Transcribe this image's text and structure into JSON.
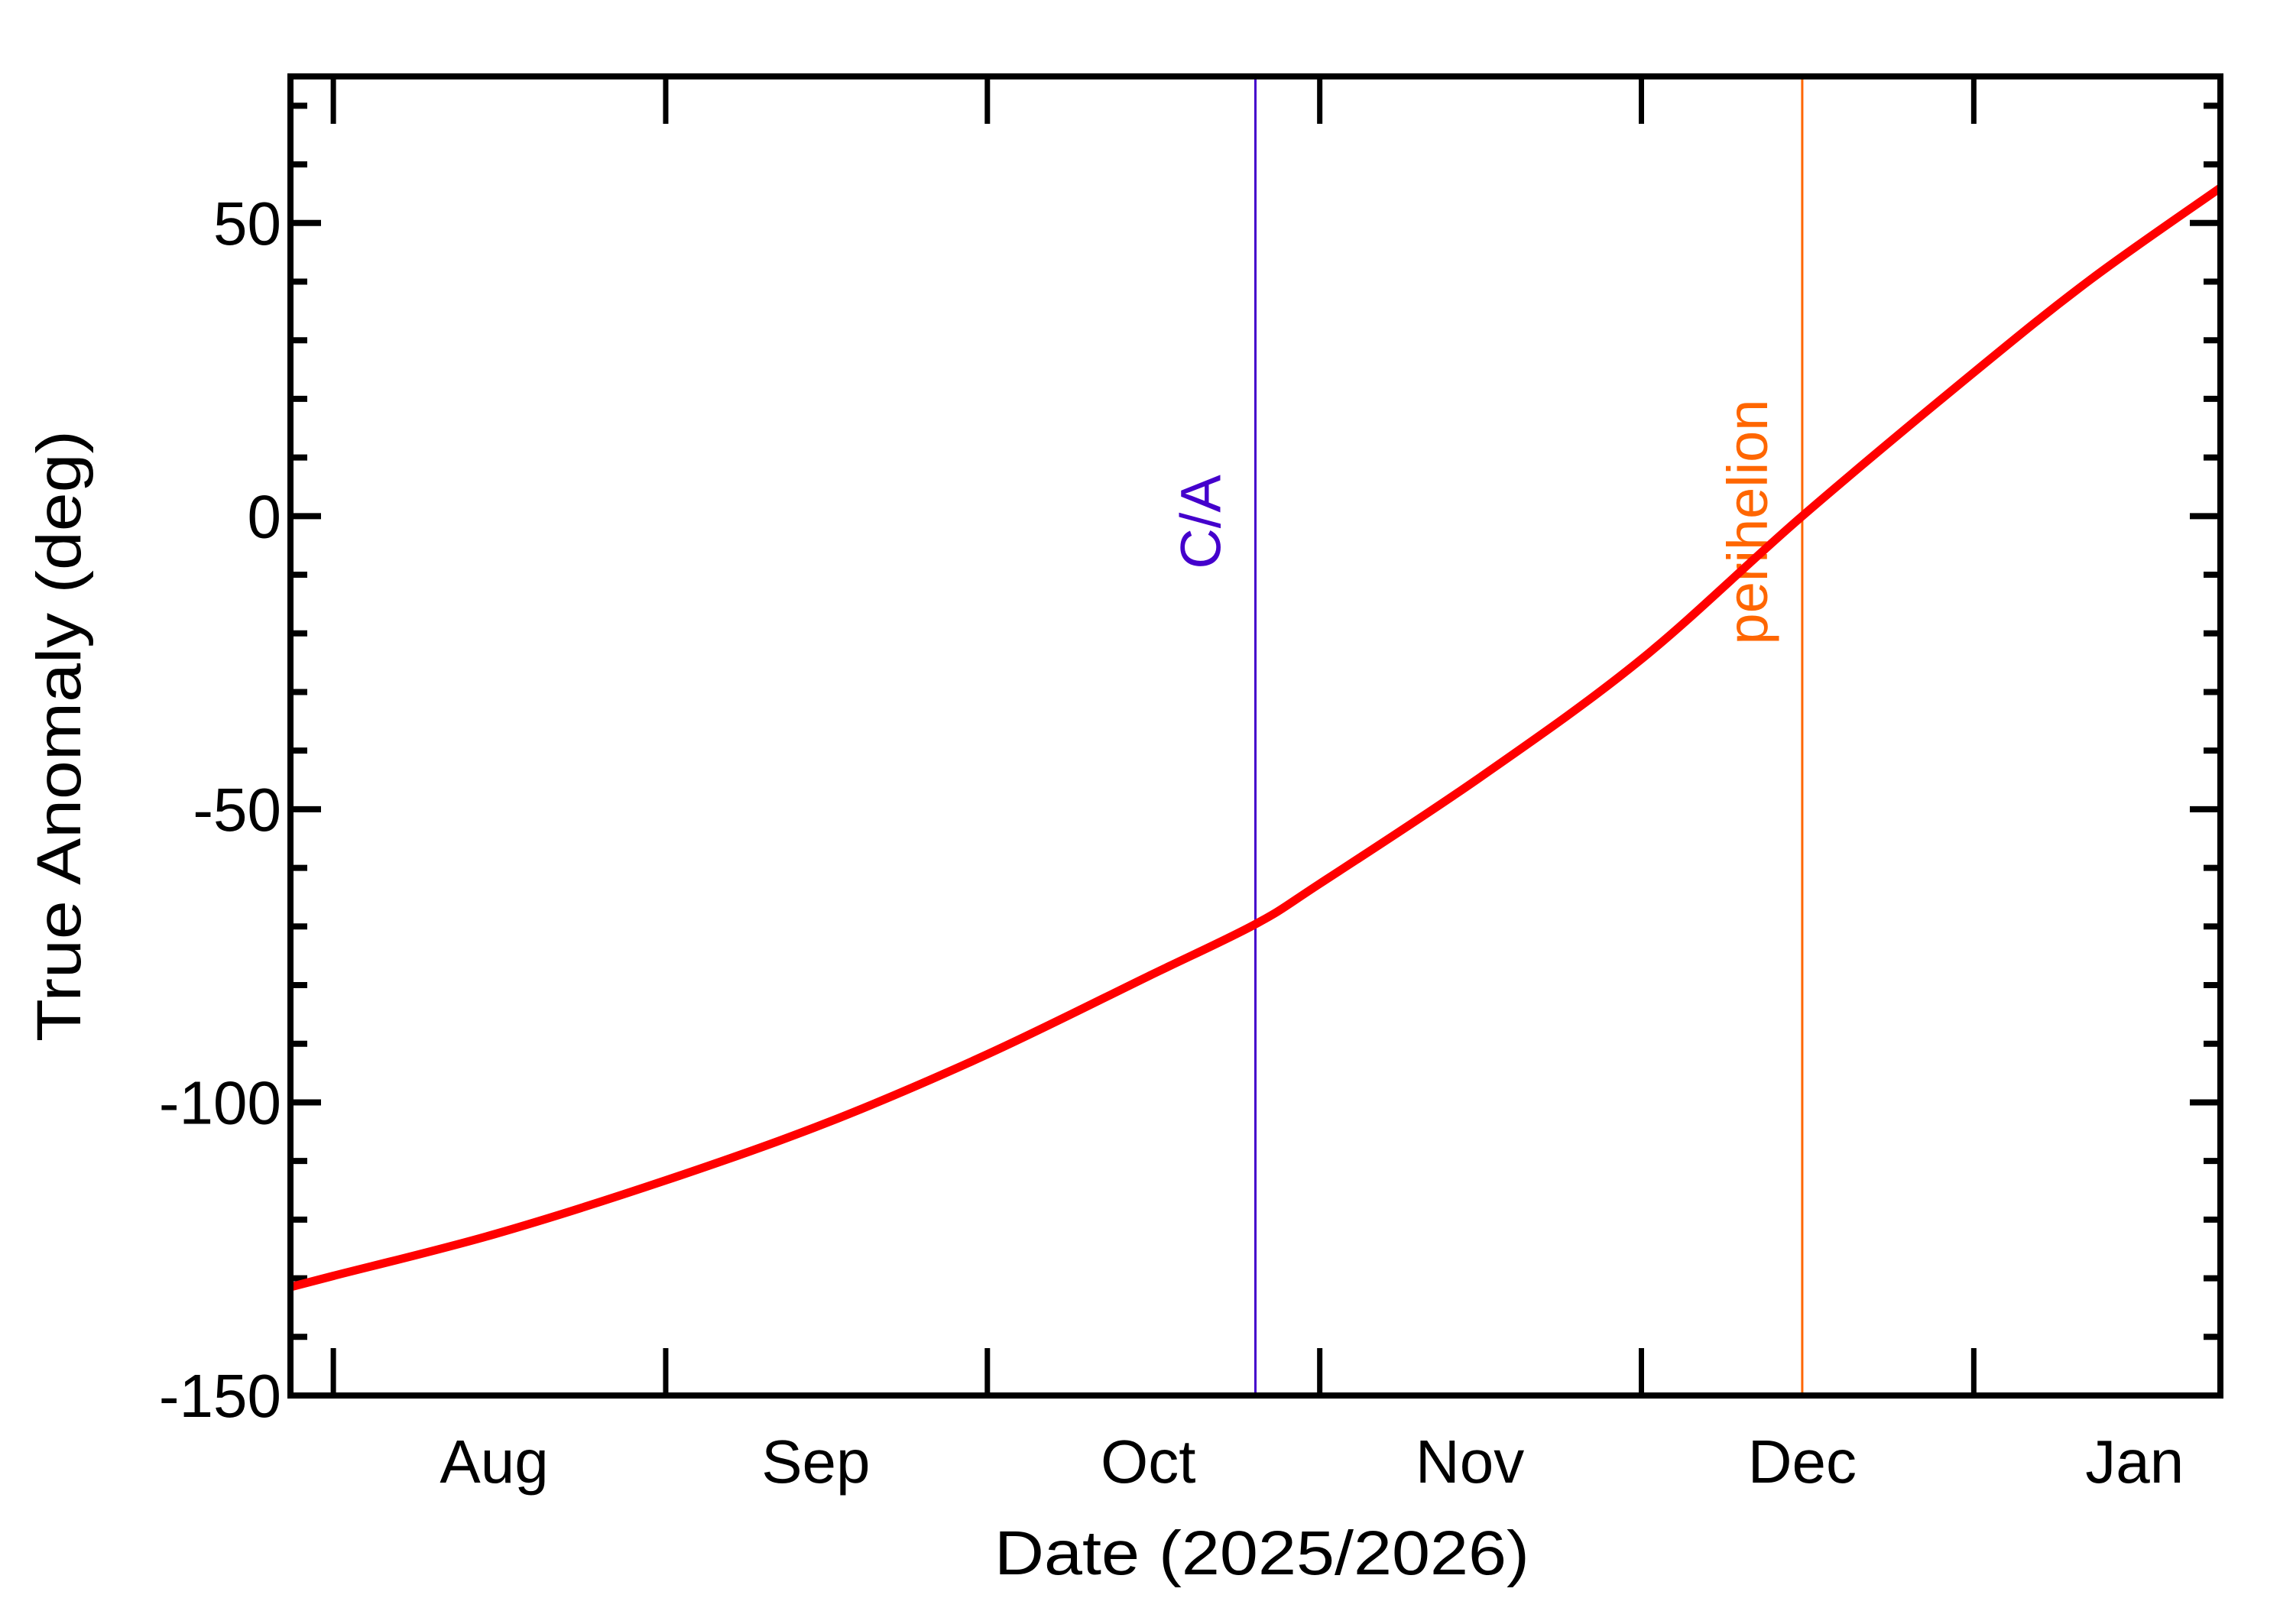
{
  "chart_data": {
    "type": "line",
    "title": "",
    "xlabel": "Date (2025/2026)",
    "ylabel": "True Anomaly (deg)",
    "ylim": [
      -150,
      75
    ],
    "xlim": [
      "2025-07-28",
      "2026-01-24"
    ],
    "grid": false,
    "legend": null,
    "y_major_ticks": [
      -150,
      -100,
      -50,
      0,
      50
    ],
    "y_minor_step": 10,
    "x_month_ticks": [
      {
        "date": "2025-08-01"
      },
      {
        "date": "2025-09-01"
      },
      {
        "date": "2025-10-01"
      },
      {
        "date": "2025-11-01"
      },
      {
        "date": "2025-12-01"
      },
      {
        "date": "2026-01-01"
      }
    ],
    "x_tick_labels": [
      {
        "label": "Aug",
        "center_date": "2025-08-16"
      },
      {
        "label": "Sep",
        "center_date": "2025-09-15"
      },
      {
        "label": "Oct",
        "center_date": "2025-10-16"
      },
      {
        "label": "Nov",
        "center_date": "2025-11-15"
      },
      {
        "label": "Dec",
        "center_date": "2025-12-16"
      },
      {
        "label": "Jan",
        "center_date": "2026-01-16"
      }
    ],
    "series": [
      {
        "name": "True Anomaly",
        "color": "#ff0000",
        "x": [
          "2025-07-28",
          "2025-08-01",
          "2025-08-16",
          "2025-09-01",
          "2025-09-16",
          "2025-10-01",
          "2025-10-16",
          "2025-10-26",
          "2025-11-01",
          "2025-11-16",
          "2025-12-01",
          "2025-12-16",
          "2026-01-01",
          "2026-01-12",
          "2026-01-24"
        ],
        "values": [
          -131.5,
          -129.6,
          -122.5,
          -113.3,
          -103.5,
          -91.8,
          -78.5,
          -69.6,
          -62.7,
          -44.5,
          -24.4,
          0.0,
          24.5,
          40.5,
          56.0
        ]
      }
    ],
    "annotations": [
      {
        "label": "C/A",
        "date": "2025-10-26",
        "color": "#4400cc",
        "type": "vertical-line"
      },
      {
        "label": "perihelion",
        "date": "2025-12-16",
        "color": "#ff6600",
        "type": "vertical-line"
      }
    ]
  },
  "axes": {
    "x_title": "Date (2025/2026)",
    "y_title": "True Anomaly (deg)"
  },
  "markers": {
    "ca": {
      "label": "C/A",
      "color": "#4400cc"
    },
    "perihelion": {
      "label": "perihelion",
      "color": "#ff6600"
    }
  },
  "colors": {
    "curve": "#ff0000",
    "frame": "#000000",
    "background": "#ffffff"
  }
}
